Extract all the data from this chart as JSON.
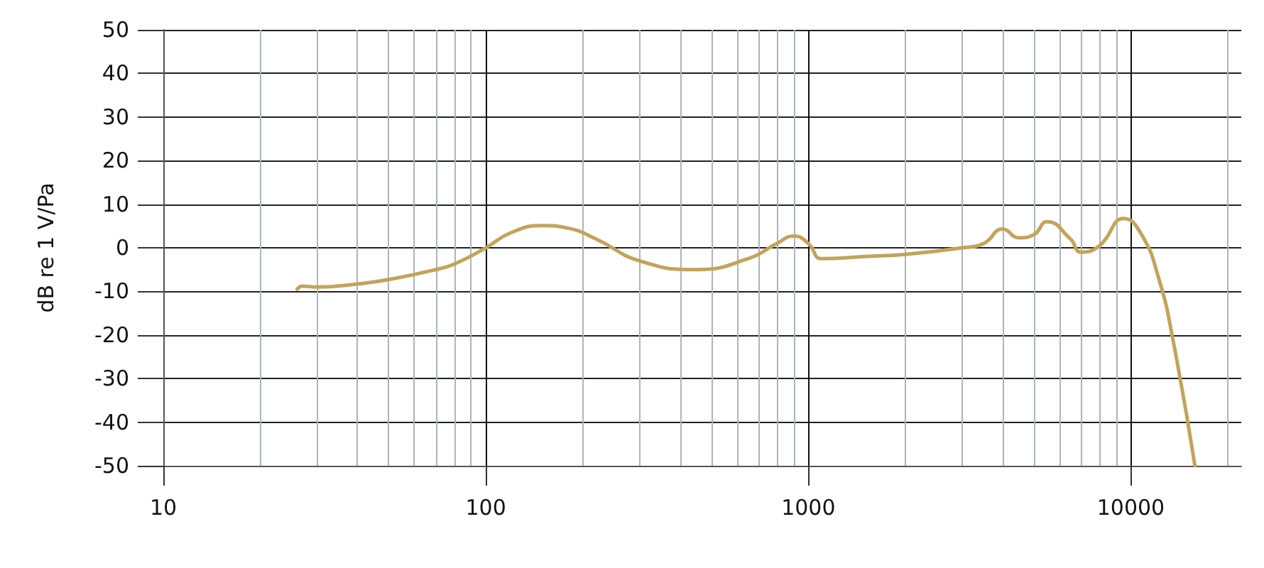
{
  "chart_data": {
    "type": "line",
    "ylabel": "dB re 1 V/Pa",
    "log": "x",
    "grid": true,
    "marker": "none",
    "line_style": "solid",
    "xlim": [
      10,
      22000
    ],
    "xticks": [
      10,
      100,
      1000,
      10000
    ],
    "ylim": [
      -50,
      50
    ],
    "yticks": [
      -50,
      -40,
      -30,
      -20,
      -10,
      0,
      10,
      20,
      30,
      40,
      50
    ],
    "series": [
      {
        "color": "#c4a35a",
        "x": [
          26,
          27,
          30,
          40,
          50,
          70,
          80,
          100,
          120,
          150,
          180,
          220,
          300,
          450,
          650,
          800,
          900,
          1000,
          1100,
          1500,
          2000,
          3000,
          3500,
          4000,
          4500,
          5000,
          5500,
          6500,
          7000,
          8000,
          9500,
          10800,
          12200,
          13500,
          15800
        ],
        "values": [
          -9.5,
          -8.8,
          -9,
          -8.3,
          -7.3,
          -5,
          -3.7,
          0,
          3.5,
          5.1,
          4.5,
          2,
          -3,
          -5,
          -2.5,
          1,
          2.7,
          1,
          -2.5,
          -2,
          -1.5,
          0,
          1,
          4.3,
          2.3,
          3,
          6,
          2,
          -1,
          0.5,
          6.7,
          3,
          -7,
          -21,
          -50
        ]
      }
    ]
  }
}
